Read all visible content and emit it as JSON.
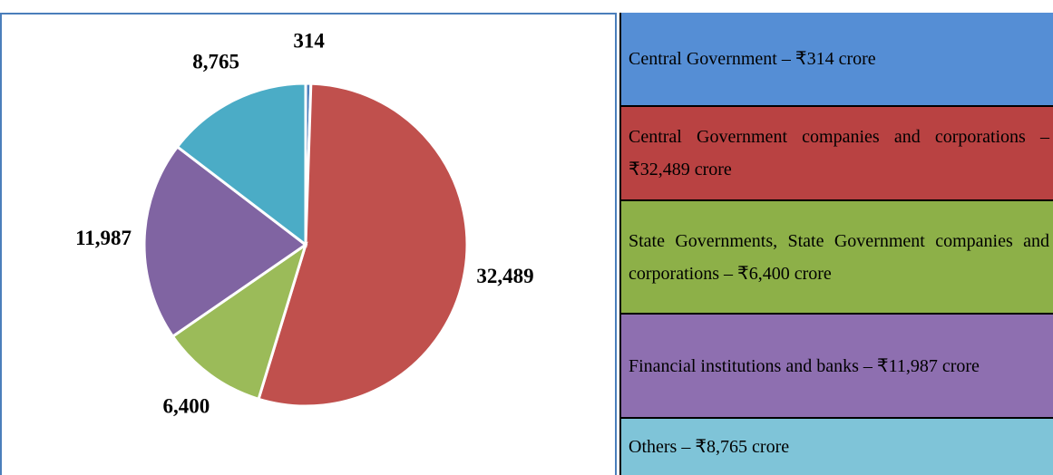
{
  "chart_data": {
    "type": "pie",
    "categories": [
      "Central Government – ₹314 crore",
      "Central Government companies and corporations – ₹32,489 crore",
      "State Governments, State Government companies and corporations – ₹6,400 crore",
      "Financial institutions and banks – ₹11,987 crore",
      "Others – ₹8,765 crore"
    ],
    "values": [
      314,
      32489,
      6400,
      11987,
      8765
    ],
    "value_labels": [
      "314",
      "32,489",
      "6,400",
      "11,987",
      "8,765"
    ],
    "colors": [
      "#4f81bd",
      "#c0504d",
      "#9bbb59",
      "#8064a2",
      "#4bacc6"
    ],
    "legend_colors": [
      "#558ed5",
      "#b94242",
      "#8db048",
      "#8e6fb0",
      "#7fc4d8"
    ]
  }
}
